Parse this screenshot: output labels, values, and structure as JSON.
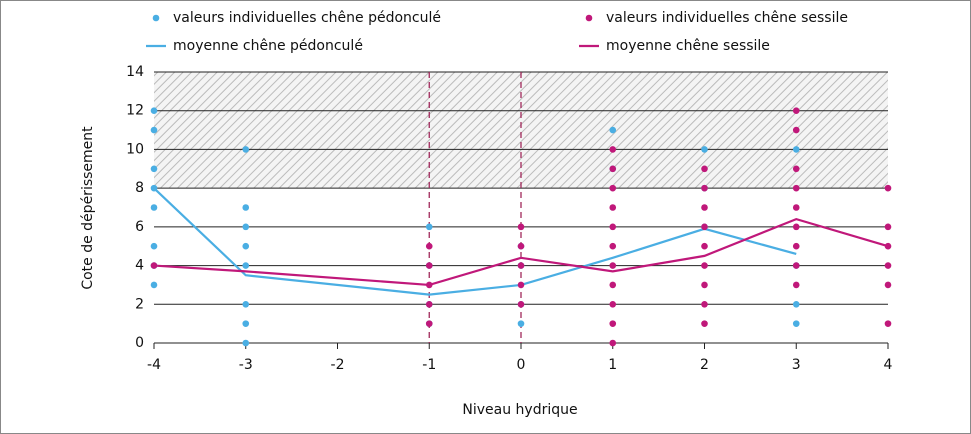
{
  "chart_data": {
    "type": "scatter",
    "x_label": "Niveau hydrique",
    "y_label": "Cote de dépérissement",
    "xlim": [
      -4,
      4
    ],
    "xticks": [
      -4,
      -3,
      -2,
      -1,
      0,
      1,
      2,
      3,
      4
    ],
    "ylim": [
      0,
      14
    ],
    "yticks": [
      0,
      2,
      4,
      6,
      8,
      10,
      12,
      14
    ],
    "grid": true,
    "shaded_range": [
      8,
      14
    ],
    "reference_lines": [
      -1,
      0
    ],
    "series": [
      {
        "name": "valeurs individuelles chêne pédonculé",
        "style": "points",
        "color": "#4aaee3",
        "x": [
          -4,
          -4,
          -4,
          -4,
          -4,
          -4,
          -4,
          -4,
          -3,
          -3,
          -3,
          -3,
          -3,
          -3,
          -3,
          -3,
          -1,
          -1,
          -1,
          -1,
          0,
          0,
          0,
          0,
          1,
          1,
          2,
          2,
          2,
          3,
          3,
          3,
          3
        ],
        "values": [
          12,
          11,
          9,
          8,
          7,
          5,
          4,
          3,
          10,
          7,
          6,
          5,
          4,
          2,
          1,
          0,
          6,
          4,
          2,
          1,
          5,
          4,
          2,
          1,
          11,
          9,
          10,
          8,
          6,
          10,
          4,
          2,
          1
        ]
      },
      {
        "name": "valeurs individuelles chêne sessile",
        "style": "points",
        "color": "#c0187a",
        "x": [
          -4,
          -1,
          -1,
          -1,
          -1,
          -1,
          0,
          0,
          0,
          0,
          0,
          1,
          1,
          1,
          1,
          1,
          1,
          1,
          1,
          1,
          1,
          1,
          2,
          2,
          2,
          2,
          2,
          2,
          2,
          2,
          2,
          3,
          3,
          3,
          3,
          3,
          3,
          3,
          3,
          3,
          4,
          4,
          4,
          4,
          4,
          4
        ],
        "values": [
          4,
          5,
          4,
          3,
          2,
          1,
          6,
          5,
          4,
          3,
          2,
          10,
          9,
          8,
          7,
          6,
          5,
          4,
          3,
          2,
          1,
          0,
          9,
          8,
          7,
          6,
          5,
          4,
          3,
          2,
          1,
          12,
          11,
          9,
          8,
          7,
          6,
          5,
          4,
          3,
          8,
          6,
          5,
          4,
          3,
          1
        ]
      },
      {
        "name": "moyenne chêne pédonculé",
        "style": "line",
        "color": "#4aaee3",
        "x": [
          -4,
          -3,
          -1,
          0,
          1,
          2,
          3
        ],
        "values": [
          8,
          3.5,
          2.5,
          3,
          4.4,
          5.9,
          4.6
        ]
      },
      {
        "name": "moyenne chêne sessile",
        "style": "line",
        "color": "#c0187a",
        "x": [
          -4,
          -3,
          -1,
          0,
          1,
          2,
          3,
          4
        ],
        "values": [
          4,
          3.7,
          3,
          4.4,
          3.7,
          4.5,
          6.4,
          5
        ]
      }
    ]
  }
}
